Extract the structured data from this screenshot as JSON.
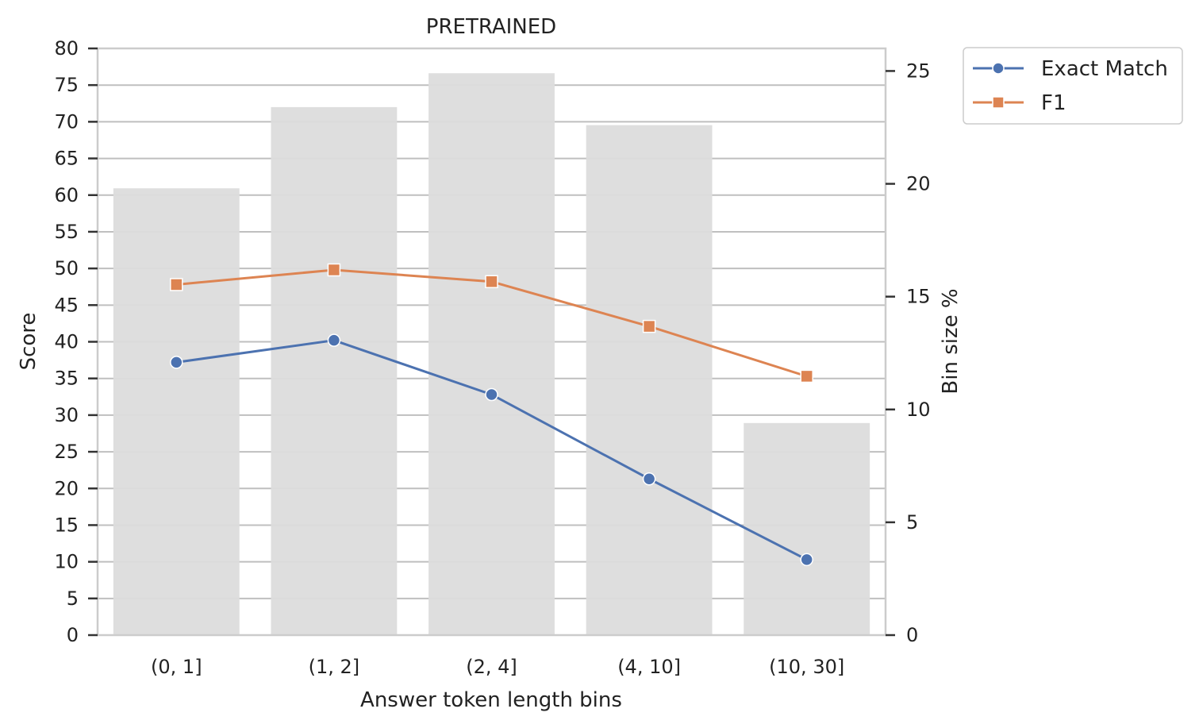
{
  "chart_data": {
    "type": "bar+line",
    "title": "PRETRAINED",
    "xlabel": "Answer token length bins",
    "ylabel_left": "Score",
    "ylabel_right": "Bin size %",
    "categories": [
      "(0, 1]",
      "(1, 2]",
      "(2, 4]",
      "(4, 10]",
      "(10, 30]"
    ],
    "bars": {
      "axis": "right",
      "values": [
        19.8,
        23.4,
        24.9,
        22.6,
        9.4
      ],
      "color": "#dcdcdc"
    },
    "series": [
      {
        "name": "Exact Match",
        "values": [
          37.2,
          40.2,
          32.8,
          21.3,
          10.3
        ],
        "color": "#4c72b0",
        "marker": "circle"
      },
      {
        "name": "F1",
        "values": [
          47.8,
          49.8,
          48.2,
          42.1,
          35.3
        ],
        "color": "#dd8452",
        "marker": "square"
      }
    ],
    "ylim_left": [
      0,
      80
    ],
    "yticks_left": [
      "0",
      "5",
      "10",
      "15",
      "20",
      "25",
      "30",
      "35",
      "40",
      "45",
      "50",
      "55",
      "60",
      "65",
      "70",
      "75",
      "80"
    ],
    "ylim_right": [
      0,
      26
    ],
    "yticks_right": [
      "0",
      "5",
      "10",
      "15",
      "20",
      "25"
    ],
    "grid": true,
    "legend_placement": "outside top-right"
  }
}
